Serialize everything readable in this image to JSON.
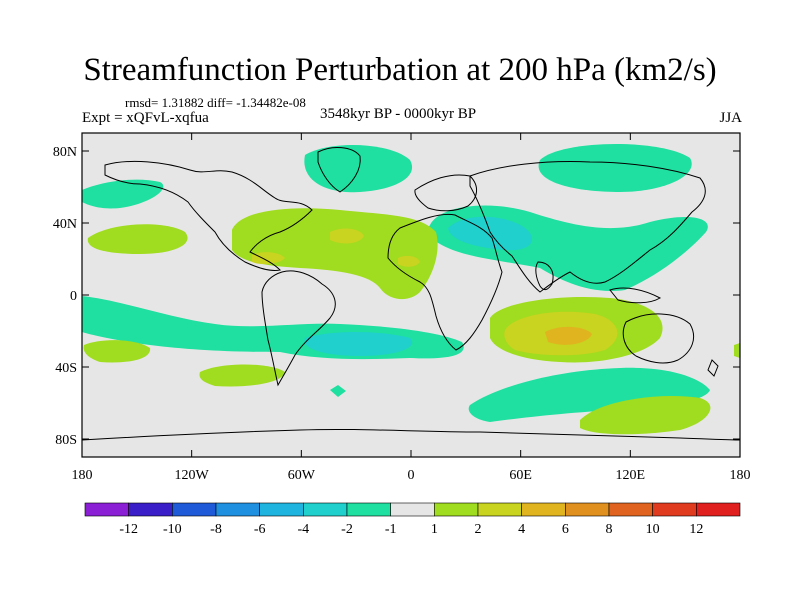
{
  "figure": {
    "title": "Streamfunction Perturbation at 200 hPa (km2/s)",
    "stats": "rmsd= 1.31882 diff= -1.34482e-08",
    "experiment": "Expt = xQFvL-xqfua",
    "period": "3548kyr BP - 0000kyr BP",
    "season": "JJA"
  },
  "map": {
    "projection": "cylindrical equidistant",
    "lon_range": [
      -180,
      180
    ],
    "lat_range": [
      -90,
      90
    ],
    "background": "#e6e6e6",
    "lat_ticks": [
      {
        "value": 80,
        "label": "80N"
      },
      {
        "value": 40,
        "label": "40N"
      },
      {
        "value": 0,
        "label": "0"
      },
      {
        "value": -40,
        "label": "40S"
      },
      {
        "value": -80,
        "label": "80S"
      }
    ],
    "lon_ticks": [
      {
        "value": -180,
        "label": "180"
      },
      {
        "value": -120,
        "label": "120W"
      },
      {
        "value": -60,
        "label": "60W"
      },
      {
        "value": 0,
        "label": "0"
      },
      {
        "value": 60,
        "label": "60E"
      },
      {
        "value": 120,
        "label": "120E"
      },
      {
        "value": 180,
        "label": "180"
      }
    ]
  },
  "colorbar": {
    "labels": [
      "-12",
      "-10",
      "-8",
      "-6",
      "-4",
      "-2",
      "-1",
      "1",
      "2",
      "4",
      "6",
      "8",
      "10",
      "12"
    ],
    "colors": [
      "#8a1fd6",
      "#3a1fc8",
      "#1f5ad8",
      "#1f8fe0",
      "#1fb4e0",
      "#1fd0cc",
      "#1fe0a0",
      "#e6e6e6",
      "#a0dc1f",
      "#c8d41f",
      "#e0b41f",
      "#e0901f",
      "#e0641f",
      "#e03a1f",
      "#e01f1f"
    ]
  },
  "chart_data": {
    "type": "contour-map",
    "variable": "200 hPa streamfunction perturbation",
    "units": "km2/s",
    "contour_levels": [
      -12,
      -10,
      -8,
      -6,
      -4,
      -2,
      -1,
      1,
      2,
      4,
      6,
      8,
      10,
      12
    ],
    "features": [
      {
        "region": "Greenland / N Atlantic",
        "lon": -45,
        "lat": 70,
        "sign": "negative",
        "level": -1
      },
      {
        "region": "Arctic / Siberia",
        "lon": 100,
        "lat": 78,
        "sign": "negative",
        "level": -1
      },
      {
        "region": "Bering Sea",
        "lon": -175,
        "lat": 62,
        "sign": "negative",
        "level": -1
      },
      {
        "region": "Eurasia mid-latitudes",
        "lon": 55,
        "lat": 40,
        "sign": "negative",
        "level": -2
      },
      {
        "region": "Tropical Atlantic / Caribbean",
        "lon": -60,
        "lat": 25,
        "sign": "positive",
        "level": 2
      },
      {
        "region": "N Pacific",
        "lon": -160,
        "lat": 25,
        "sign": "positive",
        "level": 2
      },
      {
        "region": "Tropical S Pacific",
        "lon": -140,
        "lat": -15,
        "sign": "negative",
        "level": -1
      },
      {
        "region": "S Atlantic",
        "lon": -40,
        "lat": -28,
        "sign": "negative",
        "level": -2
      },
      {
        "region": "Indian Ocean",
        "lon": 80,
        "lat": -20,
        "sign": "positive",
        "level": 4
      },
      {
        "region": "S Pacific subtropics",
        "lon": -150,
        "lat": -35,
        "sign": "positive",
        "level": 2
      },
      {
        "region": "Southern Ocean",
        "lon": 90,
        "lat": -55,
        "sign": "negative",
        "level": -1
      },
      {
        "region": "Antarctic Pacific",
        "lon": 120,
        "lat": -70,
        "sign": "positive",
        "level": 1
      }
    ]
  }
}
